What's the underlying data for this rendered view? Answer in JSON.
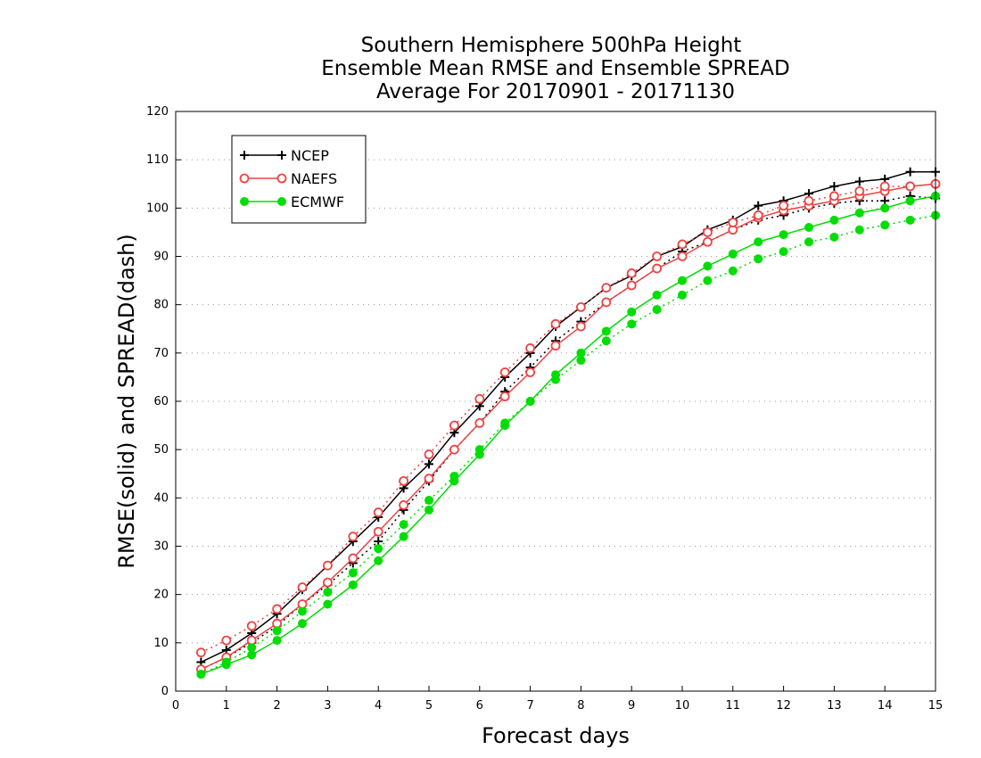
{
  "chart_data": {
    "type": "line",
    "title_lines": [
      "Southern Hemisphere 500hPa Height",
      "Ensemble Mean RMSE and Ensemble SPREAD",
      "Average For 20170901 - 20171130"
    ],
    "xlabel": "Forecast days",
    "ylabel": "RMSE(solid) and SPREAD(dash)",
    "xlim": [
      0,
      15
    ],
    "ylim": [
      0,
      120
    ],
    "xticks": [
      0,
      1,
      2,
      3,
      4,
      5,
      6,
      7,
      8,
      9,
      10,
      11,
      12,
      13,
      14,
      15
    ],
    "yticks": [
      0,
      10,
      20,
      30,
      40,
      50,
      60,
      70,
      80,
      90,
      100,
      110,
      120
    ],
    "grid": "horizontal-dotted",
    "legend_position": "top-left",
    "x": [
      0.5,
      1,
      1.5,
      2,
      2.5,
      3,
      3.5,
      4,
      4.5,
      5,
      5.5,
      6,
      6.5,
      7,
      7.5,
      8,
      8.5,
      9,
      9.5,
      10,
      10.5,
      11,
      11.5,
      12,
      12.5,
      13,
      13.5,
      14,
      14.5,
      15
    ],
    "series": [
      {
        "name": "NCEP",
        "color": "#000000",
        "marker": "plus",
        "rmse": [
          6,
          8.5,
          12,
          16,
          21,
          26,
          31,
          36,
          42,
          47,
          53.5,
          59,
          65,
          70,
          75.5,
          79.5,
          83.5,
          86,
          90,
          92,
          95.5,
          97.5,
          100.5,
          101.5,
          103,
          104.5,
          105.5,
          106,
          107.5,
          107.5
        ],
        "spread": [
          4.5,
          7,
          10,
          13.5,
          18,
          22,
          26.5,
          31,
          37.5,
          43.5,
          50,
          55.5,
          62,
          67,
          72.5,
          76.5,
          80.5,
          84,
          87.5,
          91,
          93,
          95.5,
          97.5,
          98.5,
          100,
          101,
          101.5,
          101.5,
          102.5,
          102
        ]
      },
      {
        "name": "NAEFS",
        "color": "#ee4444",
        "marker": "circle-open",
        "rmse": [
          4.5,
          7,
          10.5,
          14,
          18,
          22.5,
          27.5,
          33,
          38.5,
          44,
          50,
          55.5,
          61,
          66,
          71.5,
          75.5,
          80.5,
          84,
          87.5,
          90,
          93,
          95.5,
          98,
          99.5,
          100.5,
          101.5,
          102.5,
          103.5,
          104.5,
          105
        ],
        "spread": [
          8,
          10.5,
          13.5,
          17,
          21.5,
          26,
          32,
          37,
          43.5,
          49,
          55,
          60.5,
          66,
          71,
          76,
          79.5,
          83.5,
          86.5,
          90,
          92.5,
          95,
          97,
          98.5,
          100.5,
          101.5,
          102.5,
          103.5,
          104.5,
          104.5,
          105
        ]
      },
      {
        "name": "ECMWF",
        "color": "#00dd00",
        "marker": "dot",
        "rmse": [
          3.5,
          5.5,
          7.5,
          10.5,
          14,
          18,
          22,
          27,
          32,
          37.5,
          43.5,
          49,
          55,
          60,
          65.5,
          70,
          74.5,
          78.5,
          82,
          85,
          88,
          90.5,
          93,
          94.5,
          96,
          97.5,
          99,
          100,
          101.5,
          102.5
        ],
        "spread": [
          3.5,
          6,
          9,
          12.5,
          16.5,
          20.5,
          24.5,
          29.5,
          34.5,
          39.5,
          44.5,
          50,
          55.5,
          60,
          64.5,
          68.5,
          72.5,
          76,
          79,
          82,
          85,
          87,
          89.5,
          91,
          93,
          94,
          95.5,
          96.5,
          97.5,
          98.5
        ]
      }
    ]
  }
}
